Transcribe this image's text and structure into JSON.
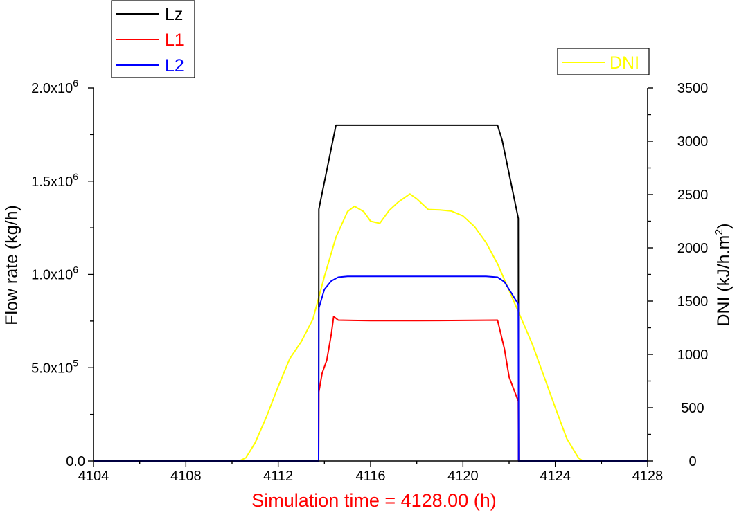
{
  "chart_data": {
    "type": "line",
    "xlabel": "Simulation time = 4128.00 (h)",
    "ylabel": "Flow rate (kg/h)",
    "y2label": "DNI (kJ/h.m²)",
    "xlim": [
      4104,
      4128
    ],
    "ylim": [
      0,
      2000000
    ],
    "y2lim": [
      0,
      3500
    ],
    "x_ticks": [
      4104,
      4108,
      4112,
      4116,
      4120,
      4124,
      4128
    ],
    "y_ticks": [
      {
        "value": 0,
        "label": "0.0",
        "exp": ""
      },
      {
        "value": 500000,
        "label": "5.0x10",
        "exp": "5"
      },
      {
        "value": 1000000,
        "label": "1.0x10",
        "exp": "6"
      },
      {
        "value": 1500000,
        "label": "1.5x10",
        "exp": "6"
      },
      {
        "value": 2000000,
        "label": "2.0x10",
        "exp": "6"
      }
    ],
    "y2_ticks": [
      0,
      500,
      1000,
      1500,
      2000,
      2500,
      3000,
      3500
    ],
    "grid": false,
    "series": [
      {
        "name": "Lz",
        "color": "#000000",
        "axis": "left",
        "x": [
          4104,
          4113.75,
          4113.76,
          4114.5,
          4121.5,
          4121.7,
          4122.4,
          4122.41,
          4128
        ],
        "y": [
          0,
          0,
          1350000,
          1800000,
          1800000,
          1720000,
          1300000,
          0,
          0
        ]
      },
      {
        "name": "L1",
        "color": "#ff0000",
        "axis": "left",
        "x": [
          4104,
          4113.75,
          4113.76,
          4113.9,
          4114.1,
          4114.3,
          4114.4,
          4114.6,
          4116,
          4118,
          4121.5,
          4121.8,
          4122.0,
          4122.4,
          4122.41,
          4128
        ],
        "y": [
          0,
          0,
          370000,
          470000,
          540000,
          680000,
          775000,
          755000,
          752000,
          752000,
          755000,
          600000,
          450000,
          320000,
          0,
          0
        ]
      },
      {
        "name": "L2",
        "color": "#0000ff",
        "axis": "left",
        "x": [
          4104,
          4113.75,
          4113.76,
          4114.0,
          4114.3,
          4114.6,
          4115,
          4117,
          4119,
          4121,
          4121.5,
          4121.8,
          4122.1,
          4122.4,
          4122.41,
          4128
        ],
        "y": [
          0,
          0,
          820000,
          920000,
          965000,
          985000,
          990000,
          990000,
          990000,
          990000,
          985000,
          960000,
          900000,
          840000,
          0,
          0
        ]
      },
      {
        "name": "DNI",
        "color": "#ffff00",
        "axis": "right",
        "x": [
          4104,
          4110.3,
          4110.6,
          4111,
          4111.5,
          4112,
          4112.5,
          4113,
          4113.5,
          4114,
          4114.5,
          4115,
          4115.3,
          4115.7,
          4116,
          4116.4,
          4116.8,
          4117.2,
          4117.7,
          4118,
          4118.5,
          4119,
          4119.5,
          4120,
          4120.5,
          4121,
          4121.5,
          4122,
          4122.5,
          4123,
          4123.5,
          4124,
          4124.5,
          4125,
          4125.2,
          4128
        ],
        "y": [
          0,
          0,
          30,
          170,
          420,
          700,
          960,
          1120,
          1330,
          1730,
          2100,
          2340,
          2390,
          2340,
          2250,
          2230,
          2350,
          2430,
          2505,
          2460,
          2360,
          2355,
          2345,
          2300,
          2200,
          2050,
          1850,
          1600,
          1350,
          1100,
          800,
          500,
          210,
          30,
          0,
          0
        ]
      }
    ],
    "legend": [
      {
        "label": "Lz",
        "color": "#000000"
      },
      {
        "label": "L1",
        "color": "#ff0000"
      },
      {
        "label": "L2",
        "color": "#0000ff"
      }
    ],
    "legend2": [
      {
        "label": "DNI",
        "color": "#ffff00"
      }
    ],
    "legend_placement": "top-left (Lz, L1, L2); top-right (DNI)"
  }
}
